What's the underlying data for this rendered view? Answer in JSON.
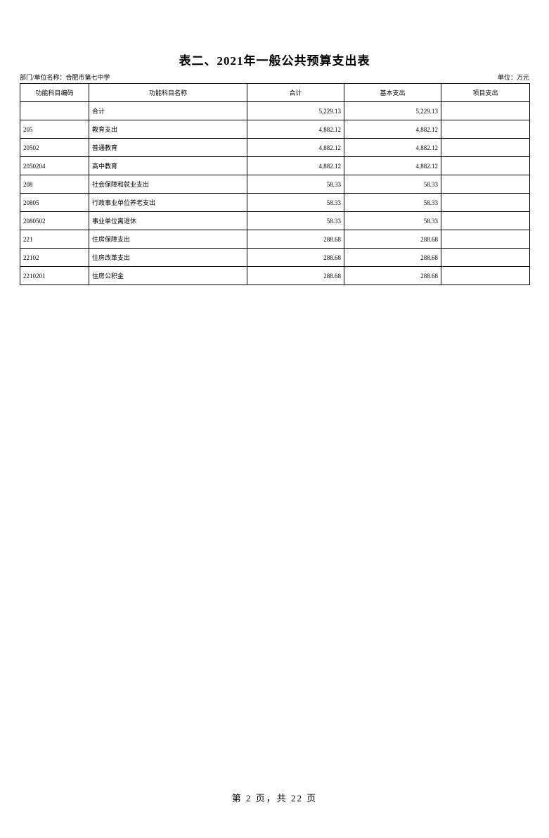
{
  "title": "表二、2021年一般公共预算支出表",
  "meta": {
    "left_label": "部门/单位名称：合肥市第七中学",
    "right_label": "单位：万元"
  },
  "table": {
    "headers": {
      "code": "功能科目编码",
      "name": "功能科目名称",
      "total": "合计",
      "basic": "基本支出",
      "project": "项目支出"
    },
    "rows": [
      {
        "code": "",
        "code_indent": 0,
        "name": "合计",
        "name_indent": 0,
        "total": "5,229.13",
        "basic": "5,229.13",
        "project": ""
      },
      {
        "code": "205",
        "code_indent": 0,
        "name": "教育支出",
        "name_indent": 0,
        "total": "4,882.12",
        "basic": "4,882.12",
        "project": ""
      },
      {
        "code": "20502",
        "code_indent": 1,
        "name": "普通教育",
        "name_indent": 1,
        "total": "4,882.12",
        "basic": "4,882.12",
        "project": ""
      },
      {
        "code": "2050204",
        "code_indent": 2,
        "name": "高中教育",
        "name_indent": 2,
        "total": "4,882.12",
        "basic": "4,882.12",
        "project": ""
      },
      {
        "code": "208",
        "code_indent": 0,
        "name": "社会保障和就业支出",
        "name_indent": 0,
        "total": "58.33",
        "basic": "58.33",
        "project": ""
      },
      {
        "code": "20805",
        "code_indent": 1,
        "name": "行政事业单位养老支出",
        "name_indent": 1,
        "total": "58.33",
        "basic": "58.33",
        "project": ""
      },
      {
        "code": "2080502",
        "code_indent": 2,
        "name": "事业单位离退休",
        "name_indent": 2,
        "total": "58.33",
        "basic": "58.33",
        "project": ""
      },
      {
        "code": "221",
        "code_indent": 0,
        "name": "住房保障支出",
        "name_indent": 0,
        "total": "288.68",
        "basic": "288.68",
        "project": ""
      },
      {
        "code": "22102",
        "code_indent": 1,
        "name": "住房改革支出",
        "name_indent": 1,
        "total": "288.68",
        "basic": "288.68",
        "project": ""
      },
      {
        "code": "2210201",
        "code_indent": 2,
        "name": "住房公积金",
        "name_indent": 2,
        "total": "288.68",
        "basic": "288.68",
        "project": ""
      }
    ]
  },
  "footer": {
    "text": "第 2 页，共 22 页"
  }
}
